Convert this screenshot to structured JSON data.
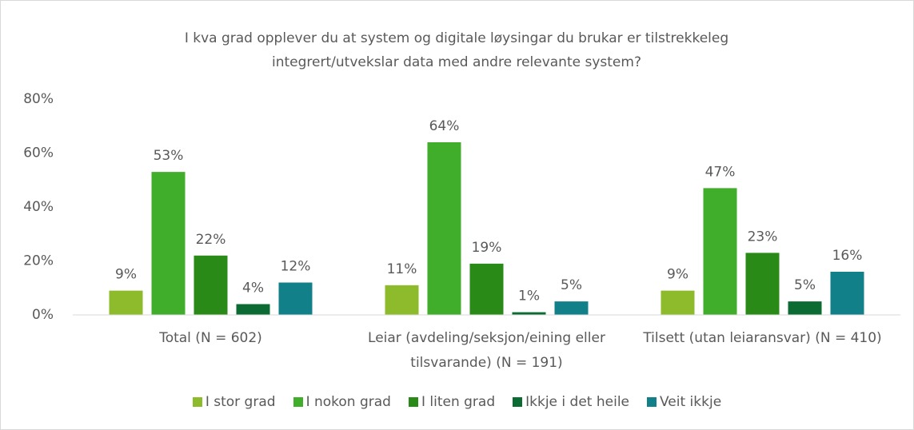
{
  "chart_data": {
    "type": "bar",
    "title": "I kva grad opplever du at system og digitale løysingar du brukar er tilstrekkeleg integrert/utvekslar data med andre relevante system?",
    "categories": [
      "Total (N = 602)",
      "Leiar (avdeling/seksjon/eining eller tilsvarande) (N = 191)",
      "Tilsett (utan leiaransvar) (N = 410)"
    ],
    "series": [
      {
        "name": "I stor grad",
        "color": "#8dbb2c",
        "values": [
          9,
          11,
          9
        ],
        "value_labels": [
          "9%",
          "11%",
          "9%"
        ]
      },
      {
        "name": "I nokon grad",
        "color": "#40ad2b",
        "values": [
          53,
          64,
          47
        ],
        "value_labels": [
          "53%",
          "64%",
          "47%"
        ]
      },
      {
        "name": "I liten grad",
        "color": "#2a8a17",
        "values": [
          22,
          19,
          23
        ],
        "value_labels": [
          "22%",
          "19%",
          "23%"
        ]
      },
      {
        "name": "Ikkje i det heile",
        "color": "#0b6b33",
        "values": [
          4,
          1,
          5
        ],
        "value_labels": [
          "4%",
          "1%",
          "5%"
        ]
      },
      {
        "name": "Veit ikkje",
        "color": "#118089",
        "values": [
          12,
          5,
          16
        ],
        "value_labels": [
          "12%",
          "5%",
          "16%"
        ]
      }
    ],
    "ylim": [
      0,
      80
    ],
    "yticks": [
      {
        "value": 0,
        "label": "0%"
      },
      {
        "value": 20,
        "label": "20%"
      },
      {
        "value": 40,
        "label": "40%"
      },
      {
        "value": 60,
        "label": "60%"
      },
      {
        "value": 80,
        "label": "80%"
      }
    ],
    "grid": false,
    "legend": "bottom"
  }
}
